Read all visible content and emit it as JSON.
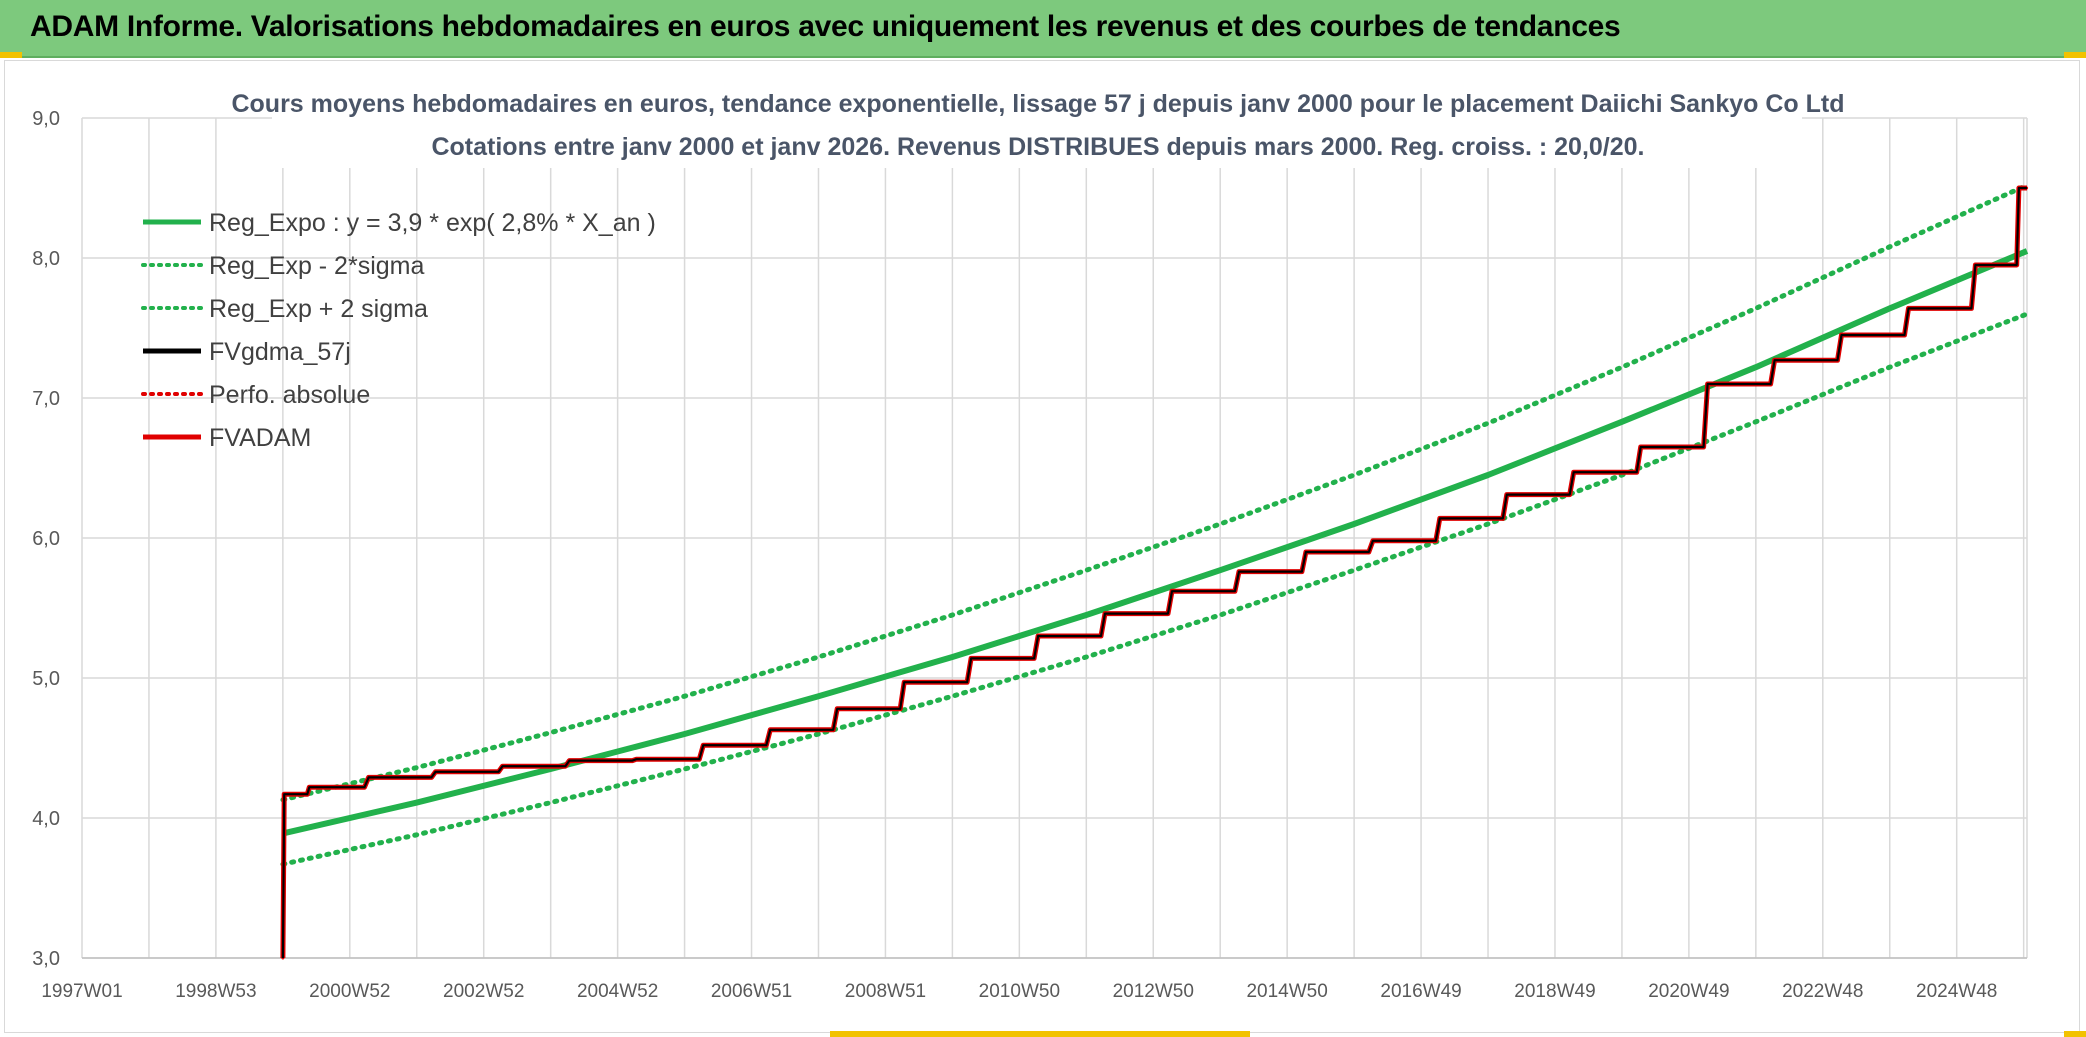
{
  "banner": {
    "title": "ADAM Informe. Valorisations hebdomadaires en euros avec uniquement les revenus et des courbes de tendances"
  },
  "chart_data": {
    "type": "line",
    "title_lines": [
      "Cours moyens hebdomadaires en euros, tendance exponentielle, lissage 57 j depuis janv 2000 pour le placement Daiichi Sankyo Co Ltd",
      "Cotations entre janv 2000 et janv 2026. Revenus DISTRIBUES depuis mars 2000. Reg. croiss. : 20,0/20."
    ],
    "xlabel": "",
    "ylabel": "",
    "ylim": [
      3.0,
      9.0
    ],
    "xlim": [
      1997.0,
      2026.05
    ],
    "y_ticks": [
      "3,0",
      "4,0",
      "5,0",
      "6,0",
      "7,0",
      "8,0",
      "9,0"
    ],
    "x_ticks": [
      {
        "label": "1997W01",
        "x": 1997.0
      },
      {
        "label": "1998W53",
        "x": 1999.0
      },
      {
        "label": "2000W52",
        "x": 2001.0
      },
      {
        "label": "2002W52",
        "x": 2003.0
      },
      {
        "label": "2004W52",
        "x": 2005.0
      },
      {
        "label": "2006W51",
        "x": 2007.0
      },
      {
        "label": "2008W51",
        "x": 2009.0
      },
      {
        "label": "2010W50",
        "x": 2011.0
      },
      {
        "label": "2012W50",
        "x": 2013.0
      },
      {
        "label": "2014W50",
        "x": 2015.0
      },
      {
        "label": "2016W49",
        "x": 2017.0
      },
      {
        "label": "2018W49",
        "x": 2019.0
      },
      {
        "label": "2020W49",
        "x": 2021.0
      },
      {
        "label": "2022W48",
        "x": 2023.0
      },
      {
        "label": "2024W48",
        "x": 2025.0
      }
    ],
    "grid": true,
    "legend_position": "top-left",
    "series": [
      {
        "name": "Reg_Expo : y = 3,9 * exp( 2,8% *  X_an )",
        "color": "#22b14c",
        "style": "solid",
        "x": [
          2000.0,
          2002.0,
          2004.0,
          2006.0,
          2008.0,
          2010.0,
          2012.0,
          2014.0,
          2016.0,
          2018.0,
          2020.0,
          2022.0,
          2024.0,
          2026.05
        ],
        "values": [
          3.89,
          4.11,
          4.35,
          4.6,
          4.87,
          5.15,
          5.45,
          5.77,
          6.1,
          6.45,
          6.83,
          7.22,
          7.64,
          8.05
        ]
      },
      {
        "name": "Reg_Exp - 2*sigma",
        "color": "#22b14c",
        "style": "dotted",
        "x": [
          2000.0,
          2002.0,
          2004.0,
          2006.0,
          2008.0,
          2010.0,
          2012.0,
          2014.0,
          2016.0,
          2018.0,
          2020.0,
          2022.0,
          2024.0,
          2026.05
        ],
        "values": [
          3.67,
          3.88,
          4.11,
          4.35,
          4.6,
          4.87,
          5.15,
          5.45,
          5.77,
          6.1,
          6.45,
          6.83,
          7.22,
          7.6
        ]
      },
      {
        "name": "Reg_Exp + 2 sigma",
        "color": "#22b14c",
        "style": "dotted",
        "x": [
          2000.0,
          2002.0,
          2004.0,
          2006.0,
          2008.0,
          2010.0,
          2012.0,
          2014.0,
          2016.0,
          2018.0,
          2020.0,
          2022.0,
          2024.0,
          2026.05
        ],
        "values": [
          4.13,
          4.36,
          4.61,
          4.87,
          5.15,
          5.45,
          5.77,
          6.1,
          6.45,
          6.82,
          7.22,
          7.64,
          8.08,
          8.52
        ]
      },
      {
        "name": "FVgdma_57j",
        "color": "#000000",
        "style": "solid",
        "x": [
          2000.0,
          2000.02,
          2000.5,
          2001.5,
          2002.5,
          2003.5,
          2004.5,
          2005.5,
          2006.5,
          2007.5,
          2008.5,
          2009.5,
          2010.5,
          2011.5,
          2012.5,
          2013.5,
          2014.5,
          2015.5,
          2016.5,
          2017.5,
          2018.5,
          2019.5,
          2020.5,
          2021.5,
          2022.5,
          2023.5,
          2024.5,
          2025.5,
          2026.05
        ],
        "values": [
          3.0,
          4.17,
          4.22,
          4.29,
          4.33,
          4.37,
          4.41,
          4.42,
          4.52,
          4.63,
          4.78,
          4.97,
          5.14,
          5.3,
          5.46,
          5.62,
          5.76,
          5.9,
          5.98,
          6.14,
          6.31,
          6.47,
          6.65,
          7.1,
          7.27,
          7.45,
          7.64,
          7.95,
          8.5
        ]
      },
      {
        "name": "Perfo. absolue",
        "color": "#e00000",
        "style": "dotted",
        "x": [
          2000.0,
          2000.02,
          2000.5,
          2001.5,
          2002.5,
          2003.5,
          2004.5,
          2005.5,
          2006.5,
          2007.5,
          2008.5,
          2009.5,
          2010.5,
          2011.5,
          2012.5,
          2013.5,
          2014.5,
          2015.5,
          2016.5,
          2017.5,
          2018.5,
          2019.5,
          2020.5,
          2021.5,
          2022.5,
          2023.5,
          2024.5,
          2025.5,
          2026.05
        ],
        "values": [
          3.0,
          4.17,
          4.22,
          4.29,
          4.33,
          4.37,
          4.41,
          4.42,
          4.52,
          4.63,
          4.78,
          4.97,
          5.14,
          5.3,
          5.46,
          5.62,
          5.76,
          5.9,
          5.98,
          6.14,
          6.31,
          6.47,
          6.65,
          7.1,
          7.27,
          7.45,
          7.64,
          7.95,
          8.5
        ]
      },
      {
        "name": "FVADAM",
        "color": "#e00000",
        "style": "solid",
        "x": [
          2000.0,
          2000.02,
          2000.5,
          2001.5,
          2002.5,
          2003.5,
          2004.5,
          2005.5,
          2006.5,
          2007.5,
          2008.5,
          2009.5,
          2010.5,
          2011.5,
          2012.5,
          2013.5,
          2014.5,
          2015.5,
          2016.5,
          2017.5,
          2018.5,
          2019.5,
          2020.5,
          2021.5,
          2022.5,
          2023.5,
          2024.5,
          2025.5,
          2026.05
        ],
        "values": [
          3.0,
          4.17,
          4.22,
          4.29,
          4.33,
          4.37,
          4.41,
          4.42,
          4.52,
          4.63,
          4.78,
          4.97,
          5.14,
          5.3,
          5.46,
          5.62,
          5.76,
          5.9,
          5.98,
          6.14,
          6.31,
          6.47,
          6.65,
          7.1,
          7.27,
          7.45,
          7.64,
          7.95,
          8.5
        ]
      }
    ]
  }
}
